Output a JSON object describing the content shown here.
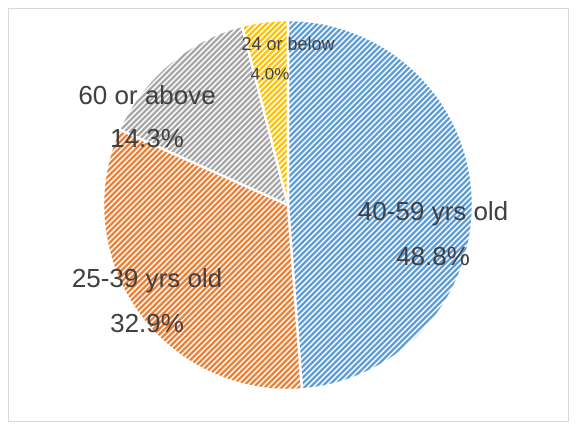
{
  "chart_data": {
    "type": "pie",
    "categories": [
      "40-59 yrs old",
      "25-39 yrs old",
      "60 or above",
      "24 or below"
    ],
    "values": [
      48.8,
      32.9,
      14.3,
      4.0
    ],
    "value_labels": [
      "48.8%",
      "32.9%",
      "14.3%",
      "4.0%"
    ],
    "colors": [
      "#5b9bd5",
      "#ed7d31",
      "#a5a5a5",
      "#ffc000"
    ]
  }
}
